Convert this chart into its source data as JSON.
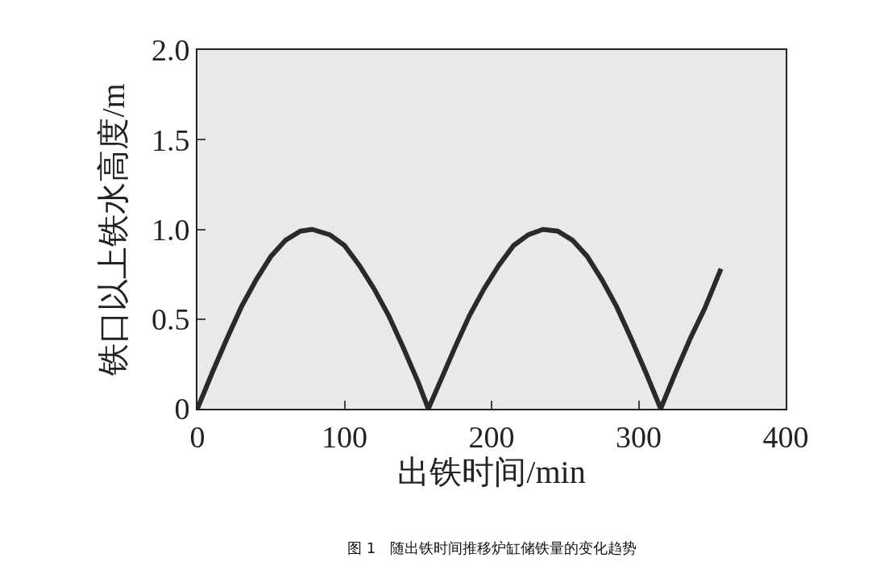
{
  "chart_data": {
    "type": "line",
    "xlabel": "出铁时间/min",
    "ylabel": "铁口以上铁水高度/m",
    "annotations": [
      "图 1　随出铁时间推移炉缸储铁量的变化趋势"
    ],
    "x": [
      0,
      10,
      20,
      30,
      40,
      50,
      60,
      70,
      78,
      90,
      100,
      110,
      120,
      130,
      140,
      150,
      157,
      165,
      175,
      185,
      195,
      205,
      215,
      225,
      235,
      245,
      255,
      265,
      275,
      285,
      295,
      305,
      315,
      325,
      335,
      345,
      356
    ],
    "series": [
      {
        "color": "#2a2a2a",
        "values": [
          0,
          0.2,
          0.39,
          0.57,
          0.72,
          0.85,
          0.94,
          0.99,
          1.0,
          0.97,
          0.91,
          0.8,
          0.67,
          0.52,
          0.34,
          0.15,
          0,
          0.15,
          0.34,
          0.52,
          0.67,
          0.8,
          0.91,
          0.97,
          1.0,
          0.99,
          0.94,
          0.85,
          0.72,
          0.57,
          0.39,
          0.2,
          0,
          0.2,
          0.39,
          0.56,
          0.78
        ]
      }
    ],
    "xlim": [
      0,
      400
    ],
    "xticks": [
      0,
      100,
      200,
      300,
      400
    ],
    "ylim": [
      0,
      2.0
    ],
    "yticks": [
      {
        "value": 0,
        "label": "0"
      },
      {
        "value": 0.5,
        "label": "0.5"
      },
      {
        "value": 1.0,
        "label": "1.0"
      },
      {
        "value": 1.5,
        "label": "1.5"
      },
      {
        "value": 2.0,
        "label": "2.0"
      }
    ],
    "grid": false,
    "marker": "none",
    "line_style": "solid"
  }
}
